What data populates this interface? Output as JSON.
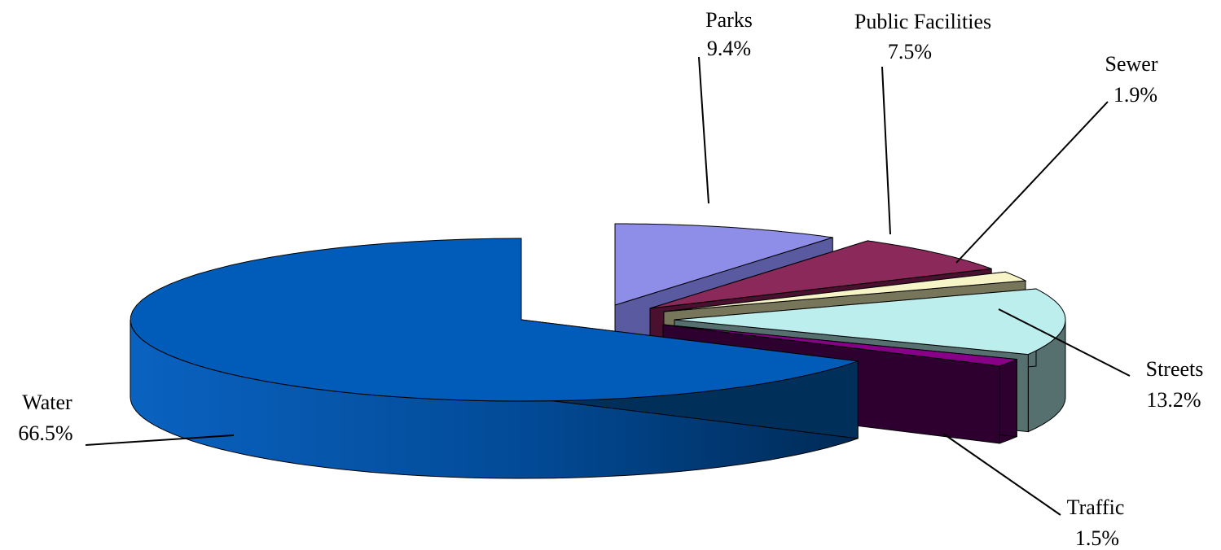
{
  "chart_data": {
    "type": "pie",
    "style": "3d-exploded",
    "legend": "none",
    "slices": [
      {
        "label": "Parks",
        "value": 9.4,
        "value_label": "9.4%",
        "color": "#8e8ee8",
        "side_color": "#5a5aa0"
      },
      {
        "label": "Public Facilities",
        "value": 7.5,
        "value_label": "7.5%",
        "color": "#8b2a5a",
        "side_color": "#4a1030"
      },
      {
        "label": "Sewer",
        "value": 1.9,
        "value_label": "1.9%",
        "color": "#f7f4c8",
        "side_color": "#77765a"
      },
      {
        "label": "Streets",
        "value": 13.2,
        "value_label": "13.2%",
        "color": "#bdeeee",
        "side_color": "#566f6f"
      },
      {
        "label": "Traffic",
        "value": 1.5,
        "value_label": "1.5%",
        "color": "#880088",
        "side_color": "#2e0030"
      },
      {
        "label": "Water",
        "value": 66.5,
        "value_label": "66.5%",
        "color": "#005cb8",
        "side_color": "#00305a"
      }
    ]
  }
}
